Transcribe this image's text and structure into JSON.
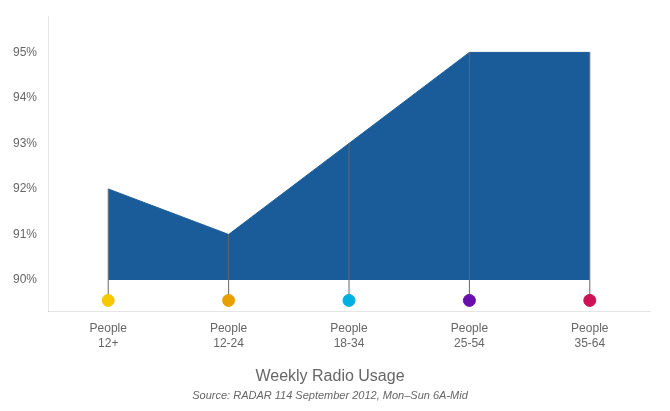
{
  "chart_data": {
    "type": "area",
    "title": "Weekly Radio Usage",
    "subtitle": "Source: RADAR 114 September 2012, Mon–Sun 6A-Mid",
    "categories": [
      "People\n12+",
      "People\n12-24",
      "People\n18-34",
      "People\n25-54",
      "People\n35-64"
    ],
    "values": [
      92.0,
      91.0,
      93.0,
      95.0,
      95.0
    ],
    "baseline": 90.0,
    "color": "#1a5c9a",
    "colors": [
      "#f5c800",
      "#e8a000",
      "#00b0e0",
      "#6a0dad",
      "#cc1155"
    ],
    "dot_y": 89.55,
    "ylim": [
      89.3,
      95.8
    ],
    "yticks": [
      {
        "value": 90,
        "label": "90%"
      },
      {
        "value": 91,
        "label": "91%"
      },
      {
        "value": 92,
        "label": "92%"
      },
      {
        "value": 93,
        "label": "93%"
      },
      {
        "value": 94,
        "label": "94%"
      },
      {
        "value": 95,
        "label": "95%"
      }
    ],
    "grid": false
  }
}
